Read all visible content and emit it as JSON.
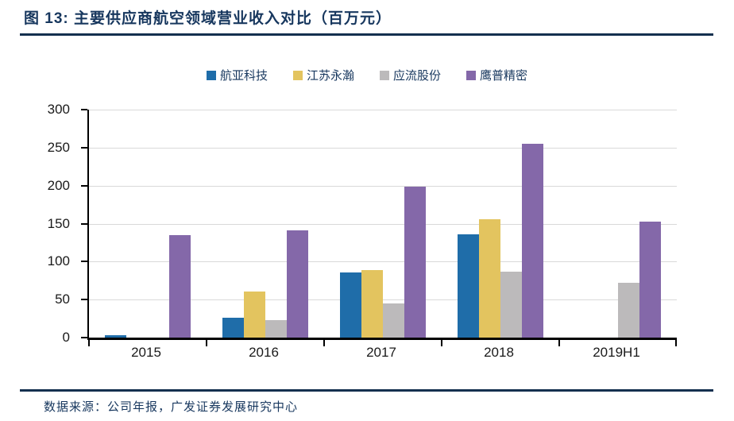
{
  "header": {
    "title": "图 13: 主要供应商航空领域营业收入对比（百万元）"
  },
  "footer": {
    "source": "数据来源：公司年报，广发证券发展研究中心"
  },
  "colors": {
    "title_navy": "#17375E",
    "rule_navy": "#14304F",
    "gridline": "#D9D9D9",
    "axis": "#000000",
    "tick_label": "#1A1A1A"
  },
  "chart_data": {
    "type": "bar",
    "title": "图 13: 主要供应商航空领域营业收入对比（百万元）",
    "xlabel": "",
    "ylabel": "",
    "categories": [
      "2015",
      "2016",
      "2017",
      "2018",
      "2019H1"
    ],
    "series": [
      {
        "name": "航亚科技",
        "color": "#1F6DA9",
        "values": [
          3,
          26,
          86,
          136,
          0
        ]
      },
      {
        "name": "江苏永瀚",
        "color": "#E3C45F",
        "values": [
          0,
          61,
          89,
          156,
          0
        ]
      },
      {
        "name": "应流股份",
        "color": "#BCBABB",
        "values": [
          0,
          23,
          45,
          87,
          72
        ]
      },
      {
        "name": "鹰普精密",
        "color": "#8468A9",
        "values": [
          135,
          141,
          199,
          255,
          153
        ]
      }
    ],
    "ylim": [
      0,
      300
    ],
    "ytick_step": 50,
    "yticks": [
      0,
      50,
      100,
      150,
      200,
      250,
      300
    ],
    "grid": true,
    "legend_position": "top-center"
  }
}
